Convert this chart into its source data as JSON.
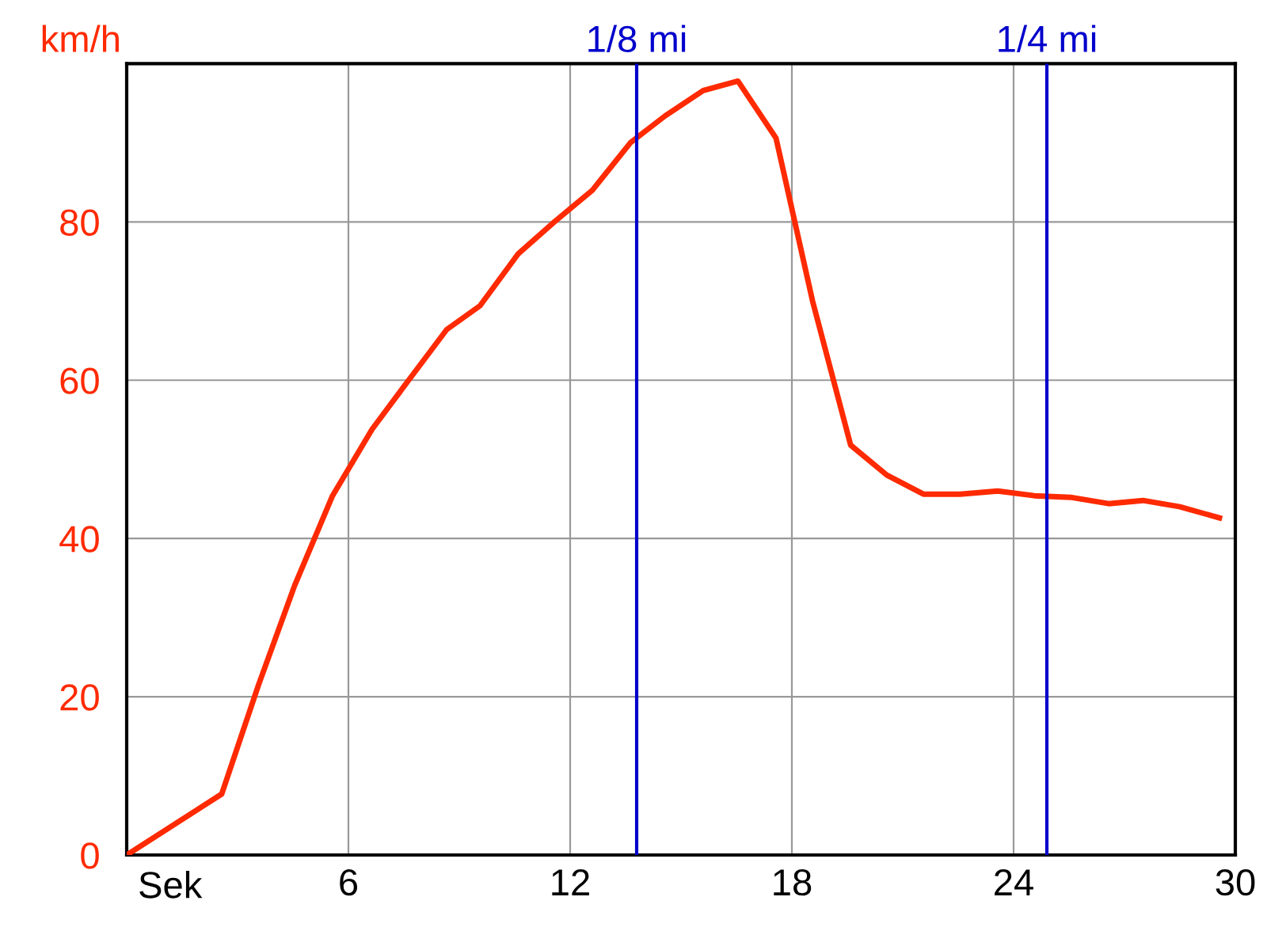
{
  "chart_data": {
    "type": "line",
    "xlabel": "Sek",
    "ylabel": "km/h",
    "xlim": [
      0,
      30
    ],
    "xticks": [
      6,
      12,
      18,
      24,
      30
    ],
    "ylim": [
      0,
      100
    ],
    "yticks": [
      0,
      20,
      40,
      60,
      80,
      {
        "value": 100,
        "label": null
      }
    ],
    "grid": true,
    "marker": "none",
    "line_style": "solid",
    "series": [
      {
        "color": "#ff2a00",
        "x": [
          0,
          2.57,
          3.56,
          4.54,
          5.57,
          6.64,
          7.63,
          8.66,
          9.56,
          10.6,
          11.57,
          12.6,
          13.63,
          14.57,
          15.6,
          16.54,
          17.57,
          18.56,
          19.59,
          20.57,
          21.56,
          22.55,
          23.57,
          24.56,
          25.54,
          26.57,
          27.5,
          28.5,
          29.57
        ],
        "values": [
          0,
          7.7,
          21.4,
          34,
          45.4,
          53.8,
          60,
          66.4,
          69.4,
          76,
          80,
          84,
          90,
          93.4,
          96.6,
          97.8,
          90.6,
          70,
          51.8,
          48,
          45.6,
          45.6,
          46,
          45.4,
          45.2,
          44.4,
          44.8,
          44,
          42.6
        ]
      }
    ],
    "ref_lines": [
      {
        "axis": "x",
        "value": 13.8,
        "label": "1/8 mi",
        "color": "#0000cc"
      },
      {
        "axis": "x",
        "value": 24.9,
        "label": "1/4 mi",
        "color": "#0000cc"
      }
    ]
  }
}
